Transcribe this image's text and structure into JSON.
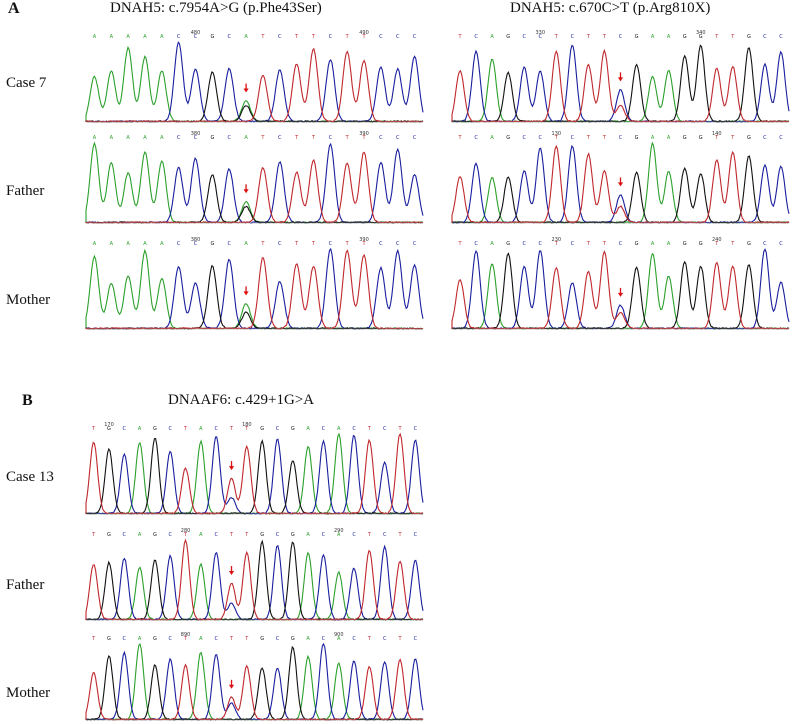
{
  "panels": [
    {
      "letter": "A",
      "samples": [
        "Case 7",
        "Father",
        "Mother"
      ],
      "variants": [
        {
          "title": "DNAH5: c.7954A>G (p.Phe43Ser)",
          "seq": "AAAAACCGCATCTTCTTCCC",
          "mark_index": 9,
          "rows": [
            {
              "pos": [
                {
                  "i": 6,
                  "num": "480"
                },
                {
                  "i": 16,
                  "num": "490"
                }
              ]
            },
            {
              "pos": [
                {
                  "i": 6,
                  "num": "380"
                },
                {
                  "i": 16,
                  "num": "390"
                }
              ]
            },
            {
              "pos": [
                {
                  "i": 6,
                  "num": "380"
                },
                {
                  "i": 16,
                  "num": "390"
                }
              ]
            }
          ]
        },
        {
          "title": "DNAH5:  c.670C>T (p.Arg810X)",
          "seq": "TCAGCCTCTTCGAAGGTTGCC",
          "mark_index": 10,
          "rows": [
            {
              "pos": [
                {
                  "i": 5,
                  "num": "330"
                },
                {
                  "i": 15,
                  "num": "340"
                }
              ]
            },
            {
              "pos": [
                {
                  "i": 6,
                  "num": "130"
                },
                {
                  "i": 16,
                  "num": "140"
                }
              ]
            },
            {
              "pos": [
                {
                  "i": 6,
                  "num": "230"
                },
                {
                  "i": 16,
                  "num": "240"
                }
              ]
            }
          ]
        }
      ]
    },
    {
      "letter": "B",
      "samples": [
        "Case 13",
        "Father",
        "Mother"
      ],
      "variants": [
        {
          "title": "DNAAF6:  c.429+1G>A",
          "seq": "TGCAGCTACTTGCGACACTCTC",
          "mark_index": 9,
          "rows": [
            {
              "pos": [
                {
                  "i": 1,
                  "num": "170"
                },
                {
                  "i": 10,
                  "num": "180"
                }
              ]
            },
            {
              "pos": [
                {
                  "i": 6,
                  "num": "280"
                },
                {
                  "i": 16,
                  "num": "290"
                }
              ]
            },
            {
              "pos": [
                {
                  "i": 6,
                  "num": "890"
                },
                {
                  "i": 16,
                  "num": "900"
                }
              ]
            }
          ]
        }
      ]
    }
  ],
  "colors": {
    "A": "#2ca02c",
    "C": "#1a1f9e",
    "G": "#111111",
    "T": "#c0282d",
    "arrow": "#dd1111"
  },
  "icons": {
    "variant_marker": "red-down-arrow"
  }
}
